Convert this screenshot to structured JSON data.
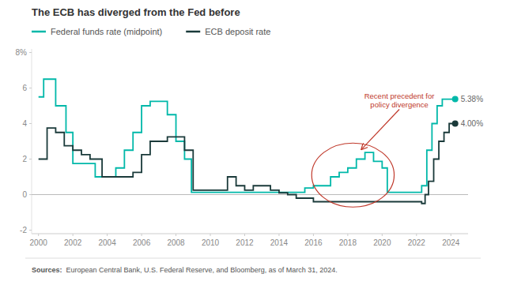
{
  "chart_data": {
    "type": "line",
    "title": "The ECB has diverged from the Fed before",
    "line_style": "step",
    "legend": "top",
    "grid": false,
    "xlim": [
      1999.6,
      2025.0
    ],
    "xticks": [
      2000,
      2002,
      2004,
      2006,
      2008,
      2010,
      2012,
      2014,
      2016,
      2018,
      2020,
      2022,
      2024
    ],
    "ylim": [
      -2.2,
      8.2
    ],
    "yticks": [
      -2,
      0,
      2,
      4,
      6,
      {
        "value": 8,
        "label": "8%"
      }
    ],
    "series": [
      {
        "name": "Federal funds rate (midpoint)",
        "color": "#00B8A9",
        "x": [
          2000.0,
          2000.3,
          2001.0,
          2001.6,
          2002.0,
          2002.8,
          2003.3,
          2004.0,
          2004.5,
          2005.0,
          2005.5,
          2006.0,
          2006.5,
          2007.0,
          2007.5,
          2008.0,
          2008.5,
          2008.9,
          2015.0,
          2015.5,
          2016.0,
          2016.5,
          2017.0,
          2017.5,
          2018.0,
          2018.5,
          2019.0,
          2019.5,
          2020.0,
          2020.3,
          2022.0,
          2022.3,
          2022.6,
          2022.9,
          2023.2,
          2023.5,
          2024.25
        ],
        "values": [
          5.5,
          6.5,
          5.0,
          3.5,
          1.75,
          1.75,
          1.0,
          1.0,
          1.5,
          2.5,
          3.5,
          5.0,
          5.25,
          5.25,
          4.5,
          3.0,
          2.0,
          0.125,
          0.125,
          0.375,
          0.5,
          0.5,
          1.0,
          1.25,
          1.5,
          2.0,
          2.375,
          1.875,
          1.5,
          0.125,
          0.125,
          0.5,
          2.5,
          4.0,
          5.0,
          5.375,
          5.375
        ],
        "value_labels": [
          null,
          null,
          null,
          null,
          null,
          null,
          null,
          null,
          null,
          null,
          null,
          null,
          null,
          null,
          null,
          null,
          null,
          null,
          null,
          null,
          null,
          null,
          null,
          null,
          null,
          null,
          null,
          null,
          null,
          null,
          null,
          null,
          null,
          null,
          null,
          null,
          "5.38%"
        ]
      },
      {
        "name": "ECB deposit rate",
        "color": "#1A3A3A",
        "x": [
          2000.0,
          2000.5,
          2001.0,
          2001.5,
          2002.0,
          2002.5,
          2003.0,
          2003.7,
          2005.0,
          2005.5,
          2006.0,
          2006.5,
          2007.0,
          2007.5,
          2008.0,
          2008.5,
          2009.0,
          2011.0,
          2011.5,
          2012.0,
          2012.5,
          2013.0,
          2013.5,
          2014.0,
          2014.5,
          2015.0,
          2016.0,
          2022.3,
          2022.5,
          2022.7,
          2023.0,
          2023.3,
          2023.6,
          2023.9,
          2024.25
        ],
        "values": [
          2.0,
          3.75,
          3.5,
          2.75,
          2.5,
          2.25,
          2.0,
          1.0,
          1.0,
          1.25,
          2.25,
          3.0,
          3.0,
          3.25,
          3.25,
          2.5,
          0.25,
          1.0,
          0.5,
          0.25,
          0.5,
          0.5,
          0.25,
          0.1,
          0.0,
          -0.2,
          -0.4,
          -0.5,
          0.0,
          0.75,
          2.0,
          3.0,
          3.5,
          4.0,
          4.0
        ],
        "value_labels": [
          null,
          null,
          null,
          null,
          null,
          null,
          null,
          null,
          null,
          null,
          null,
          null,
          null,
          null,
          null,
          null,
          null,
          null,
          null,
          null,
          null,
          null,
          null,
          null,
          null,
          null,
          null,
          null,
          null,
          null,
          null,
          null,
          null,
          null,
          "4.00%"
        ]
      }
    ],
    "annotation": {
      "text": "Recent precedent for\npolicy divergence",
      "color": "#C0392B",
      "xy": [
        2018.8,
        2.55
      ],
      "xytext": [
        2021.0,
        4.8
      ],
      "ellipse": {
        "x": 2018.3,
        "y": 1.1,
        "width": 4.8,
        "height": 3.6
      }
    },
    "source_label": "Sources:",
    "source": "European Central Bank, U.S. Federal Reserve, and Bloomberg, as of March 31, 2024."
  }
}
